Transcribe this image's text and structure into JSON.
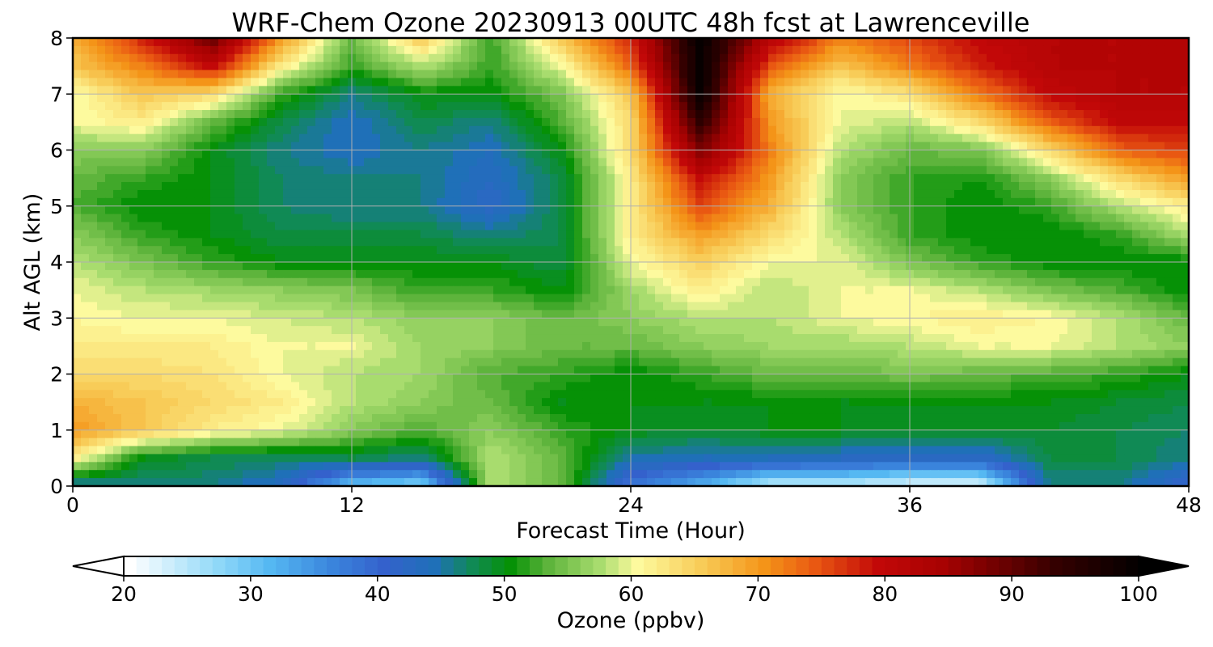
{
  "chart_data": {
    "type": "heatmap",
    "title": "WRF-Chem Ozone  20230913 00UTC 48h fcst at Lawrenceville",
    "xlabel": "Forecast Time (Hour)",
    "ylabel": "Alt AGL (km)",
    "xlim": [
      0,
      48
    ],
    "ylim": [
      0,
      8
    ],
    "xticks": [
      0,
      12,
      24,
      36,
      48
    ],
    "yticks": [
      0,
      1,
      2,
      3,
      4,
      5,
      6,
      7,
      8
    ],
    "grid": true,
    "x_hours": [
      0,
      3,
      6,
      9,
      12,
      15,
      18,
      21,
      24,
      27,
      30,
      33,
      36,
      39,
      42,
      45,
      48
    ],
    "y_km": [
      0,
      0.5,
      1,
      1.5,
      2,
      2.5,
      3,
      3.5,
      4,
      4.5,
      5,
      5.5,
      6,
      6.5,
      7,
      7.5,
      8
    ],
    "values_ppbv": [
      [
        44,
        46,
        46,
        43,
        30,
        28,
        58,
        54,
        38,
        32,
        24,
        24,
        22,
        22,
        46,
        46,
        40
      ],
      [
        62,
        50,
        48,
        47,
        48,
        46,
        58,
        54,
        45,
        44,
        44,
        43,
        42,
        42,
        48,
        48,
        46
      ],
      [
        70,
        66,
        62,
        60,
        56,
        53,
        56,
        52,
        50,
        49,
        50,
        50,
        49,
        49,
        49,
        48,
        47
      ],
      [
        68,
        66,
        64,
        62,
        58,
        56,
        54,
        50,
        50,
        50,
        50,
        50,
        50,
        50,
        50,
        49,
        48
      ],
      [
        64,
        64,
        63,
        60,
        58,
        57,
        53,
        52,
        50,
        52,
        54,
        54,
        55,
        54,
        53,
        52,
        50
      ],
      [
        62,
        62,
        62,
        60,
        60,
        57,
        56,
        54,
        54,
        56,
        57,
        57,
        58,
        60,
        60,
        58,
        56
      ],
      [
        61,
        60,
        60,
        59,
        58,
        56,
        56,
        54,
        56,
        58,
        58,
        60,
        61,
        62,
        61,
        58,
        54
      ],
      [
        60,
        58,
        57,
        56,
        55,
        52,
        52,
        50,
        57,
        62,
        58,
        60,
        60,
        58,
        55,
        53,
        50
      ],
      [
        58,
        55,
        52,
        50,
        50,
        50,
        50,
        48,
        60,
        65,
        60,
        60,
        55,
        52,
        50,
        50,
        50
      ],
      [
        56,
        52,
        50,
        48,
        48,
        48,
        46,
        48,
        62,
        70,
        64,
        58,
        52,
        50,
        50,
        52,
        58
      ],
      [
        53,
        50,
        50,
        47,
        46,
        46,
        42,
        48,
        62,
        76,
        68,
        56,
        52,
        50,
        52,
        58,
        62
      ],
      [
        54,
        52,
        50,
        47,
        46,
        46,
        43,
        48,
        62,
        80,
        70,
        56,
        52,
        51,
        56,
        64,
        70
      ],
      [
        56,
        56,
        50,
        46,
        44,
        46,
        44,
        50,
        64,
        88,
        72,
        58,
        54,
        55,
        64,
        74,
        76
      ],
      [
        60,
        62,
        54,
        48,
        44,
        48,
        46,
        53,
        64,
        95,
        70,
        60,
        58,
        64,
        74,
        80,
        80
      ],
      [
        60,
        66,
        64,
        52,
        46,
        50,
        50,
        55,
        66,
        100,
        68,
        60,
        63,
        72,
        80,
        82,
        82
      ],
      [
        66,
        72,
        80,
        62,
        52,
        58,
        52,
        60,
        74,
        100,
        75,
        66,
        72,
        78,
        82,
        82,
        82
      ],
      [
        68,
        78,
        90,
        70,
        54,
        66,
        52,
        66,
        78,
        100,
        82,
        72,
        76,
        80,
        82,
        82,
        82
      ]
    ],
    "colorbar": {
      "label": "Ozone  (ppbv)",
      "min": 20,
      "max": 100,
      "ticks": [
        20,
        30,
        40,
        50,
        60,
        70,
        80,
        90,
        100
      ],
      "extend": "both",
      "levels": 80,
      "colormap": [
        [
          20,
          "#ffffff"
        ],
        [
          27,
          "#8fd8f8"
        ],
        [
          31,
          "#55b8f2"
        ],
        [
          36,
          "#3a84dc"
        ],
        [
          40,
          "#3461cc"
        ],
        [
          44,
          "#1f70b8"
        ],
        [
          47,
          "#108a55"
        ],
        [
          50,
          "#069106"
        ],
        [
          53,
          "#5eb43c"
        ],
        [
          57,
          "#a8dc6e"
        ],
        [
          60,
          "#fdfa9e"
        ],
        [
          65,
          "#f8cc58"
        ],
        [
          70,
          "#f49418"
        ],
        [
          74,
          "#e95812"
        ],
        [
          79,
          "#c20808"
        ],
        [
          84,
          "#a80202"
        ],
        [
          93,
          "#340000"
        ],
        [
          100,
          "#000000"
        ]
      ]
    }
  }
}
